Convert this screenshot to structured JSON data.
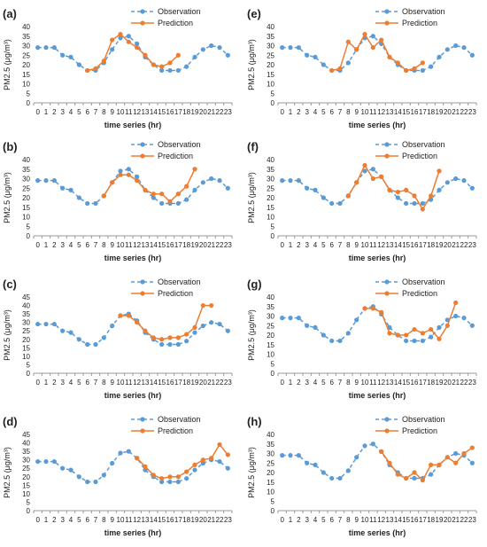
{
  "colors": {
    "observation": "#5B9BD5",
    "prediction": "#ED7D31",
    "axis": "#9a9a9a"
  },
  "chart_data": [
    {
      "panel": "(a)",
      "type": "line",
      "ylabel": "PM2.5 (μg/m³)",
      "xlabel": "time series (hr)",
      "ylim": [
        0,
        40
      ],
      "yticks": [
        0,
        5,
        10,
        15,
        20,
        25,
        30,
        35,
        40
      ],
      "grid": false,
      "legend": "top-right",
      "x": [
        0,
        1,
        2,
        3,
        4,
        5,
        6,
        7,
        8,
        9,
        10,
        11,
        12,
        13,
        14,
        15,
        16,
        17,
        18,
        19,
        20,
        21,
        22,
        23
      ],
      "series": [
        {
          "name": "Observation",
          "x": [
            0,
            1,
            2,
            3,
            4,
            5,
            6,
            7,
            8,
            9,
            10,
            11,
            12,
            13,
            14,
            15,
            16,
            17,
            18,
            19,
            20,
            21,
            22,
            23
          ],
          "values": [
            29,
            29,
            29,
            25,
            24,
            20,
            17,
            17,
            21,
            28,
            34,
            35,
            31,
            24,
            20,
            17,
            17,
            17,
            19,
            24,
            28,
            30,
            29,
            25
          ]
        },
        {
          "name": "Prediction",
          "x": [
            6,
            7,
            8,
            9,
            10,
            11,
            12,
            13,
            14,
            15,
            16,
            17
          ],
          "values": [
            17,
            18,
            22,
            33,
            36,
            32,
            29,
            25,
            20,
            19,
            21,
            25
          ]
        }
      ]
    },
    {
      "panel": "(b)",
      "type": "line",
      "ylabel": "PM2.5 (μg/m³)",
      "xlabel": "time series (hr)",
      "ylim": [
        0,
        40
      ],
      "yticks": [
        0,
        5,
        10,
        15,
        20,
        25,
        30,
        35,
        40
      ],
      "grid": false,
      "legend": "top-right",
      "x": [
        0,
        1,
        2,
        3,
        4,
        5,
        6,
        7,
        8,
        9,
        10,
        11,
        12,
        13,
        14,
        15,
        16,
        17,
        18,
        19,
        20,
        21,
        22,
        23
      ],
      "series": [
        {
          "name": "Observation",
          "x": [
            0,
            1,
            2,
            3,
            4,
            5,
            6,
            7,
            8,
            9,
            10,
            11,
            12,
            13,
            14,
            15,
            16,
            17,
            18,
            19,
            20,
            21,
            22,
            23
          ],
          "values": [
            29,
            29,
            29,
            25,
            24,
            20,
            17,
            17,
            21,
            28,
            34,
            35,
            31,
            24,
            20,
            17,
            17,
            17,
            19,
            24,
            28,
            30,
            29,
            25
          ]
        },
        {
          "name": "Prediction",
          "x": [
            8,
            9,
            10,
            11,
            12,
            13,
            14,
            15,
            16,
            17,
            18,
            19
          ],
          "values": [
            21,
            28,
            32,
            32,
            29,
            24,
            22,
            22,
            18,
            22,
            26,
            35
          ]
        }
      ]
    },
    {
      "panel": "(c)",
      "type": "line",
      "ylabel": "PM2.5 (μg/m³)",
      "xlabel": "time series (hr)",
      "ylim": [
        0,
        45
      ],
      "yticks": [
        0,
        5,
        10,
        15,
        20,
        25,
        30,
        35,
        40,
        45
      ],
      "grid": false,
      "legend": "top-right",
      "x": [
        0,
        1,
        2,
        3,
        4,
        5,
        6,
        7,
        8,
        9,
        10,
        11,
        12,
        13,
        14,
        15,
        16,
        17,
        18,
        19,
        20,
        21,
        22,
        23
      ],
      "series": [
        {
          "name": "Observation",
          "x": [
            0,
            1,
            2,
            3,
            4,
            5,
            6,
            7,
            8,
            9,
            10,
            11,
            12,
            13,
            14,
            15,
            16,
            17,
            18,
            19,
            20,
            21,
            22,
            23
          ],
          "values": [
            29,
            29,
            29,
            25,
            24,
            20,
            17,
            17,
            21,
            28,
            34,
            35,
            31,
            24,
            20,
            17,
            17,
            17,
            19,
            24,
            28,
            30,
            29,
            25
          ]
        },
        {
          "name": "Prediction",
          "x": [
            10,
            11,
            12,
            13,
            14,
            15,
            16,
            17,
            18,
            19,
            20,
            21
          ],
          "values": [
            34,
            34,
            30,
            25,
            21,
            20,
            21,
            21,
            23,
            27,
            40,
            40
          ]
        }
      ]
    },
    {
      "panel": "(d)",
      "type": "line",
      "ylabel": "PM2.5 (μg/m³)",
      "xlabel": "time series (hr)",
      "ylim": [
        0,
        45
      ],
      "yticks": [
        0,
        5,
        10,
        15,
        20,
        25,
        30,
        35,
        40,
        45
      ],
      "grid": false,
      "legend": "top-right",
      "x": [
        0,
        1,
        2,
        3,
        4,
        5,
        6,
        7,
        8,
        9,
        10,
        11,
        12,
        13,
        14,
        15,
        16,
        17,
        18,
        19,
        20,
        21,
        22,
        23
      ],
      "series": [
        {
          "name": "Observation",
          "x": [
            0,
            1,
            2,
            3,
            4,
            5,
            6,
            7,
            8,
            9,
            10,
            11,
            12,
            13,
            14,
            15,
            16,
            17,
            18,
            19,
            20,
            21,
            22,
            23
          ],
          "values": [
            29,
            29,
            29,
            25,
            24,
            20,
            17,
            17,
            21,
            28,
            34,
            35,
            31,
            24,
            20,
            17,
            17,
            17,
            19,
            24,
            28,
            30,
            29,
            25
          ]
        },
        {
          "name": "Prediction",
          "x": [
            12,
            13,
            14,
            15,
            16,
            17,
            18,
            19,
            20,
            21,
            22,
            23
          ],
          "values": [
            31,
            26,
            21,
            19,
            20,
            20,
            23,
            27,
            30,
            31,
            39,
            33
          ]
        }
      ]
    },
    {
      "panel": "(e)",
      "type": "line",
      "ylabel": "PM2.5 (μg/m³)",
      "xlabel": "time series (hr)",
      "ylim": [
        0,
        40
      ],
      "yticks": [
        0,
        5,
        10,
        15,
        20,
        25,
        30,
        35,
        40
      ],
      "grid": false,
      "legend": "top-right",
      "x": [
        0,
        1,
        2,
        3,
        4,
        5,
        6,
        7,
        8,
        9,
        10,
        11,
        12,
        13,
        14,
        15,
        16,
        17,
        18,
        19,
        20,
        21,
        22,
        23
      ],
      "series": [
        {
          "name": "Observation",
          "x": [
            0,
            1,
            2,
            3,
            4,
            5,
            6,
            7,
            8,
            9,
            10,
            11,
            12,
            13,
            14,
            15,
            16,
            17,
            18,
            19,
            20,
            21,
            22,
            23
          ],
          "values": [
            29,
            29,
            29,
            25,
            24,
            20,
            17,
            17,
            21,
            28,
            34,
            35,
            31,
            24,
            20,
            17,
            17,
            17,
            19,
            24,
            28,
            30,
            29,
            25
          ]
        },
        {
          "name": "Prediction",
          "x": [
            6,
            7,
            8,
            9,
            10,
            11,
            12,
            13,
            14,
            15,
            16,
            17
          ],
          "values": [
            17,
            18,
            32,
            28,
            36,
            29,
            33,
            24,
            21,
            17,
            18,
            21
          ]
        }
      ]
    },
    {
      "panel": "(f)",
      "type": "line",
      "ylabel": "PM2.5 (μg/m³)",
      "xlabel": "time series (hr)",
      "ylim": [
        0,
        40
      ],
      "yticks": [
        0,
        5,
        10,
        15,
        20,
        25,
        30,
        35,
        40
      ],
      "grid": false,
      "legend": "top-right",
      "x": [
        0,
        1,
        2,
        3,
        4,
        5,
        6,
        7,
        8,
        9,
        10,
        11,
        12,
        13,
        14,
        15,
        16,
        17,
        18,
        19,
        20,
        21,
        22,
        23
      ],
      "series": [
        {
          "name": "Observation",
          "x": [
            0,
            1,
            2,
            3,
            4,
            5,
            6,
            7,
            8,
            9,
            10,
            11,
            12,
            13,
            14,
            15,
            16,
            17,
            18,
            19,
            20,
            21,
            22,
            23
          ],
          "values": [
            29,
            29,
            29,
            25,
            24,
            20,
            17,
            17,
            21,
            28,
            34,
            35,
            31,
            24,
            20,
            17,
            17,
            17,
            19,
            24,
            28,
            30,
            29,
            25
          ]
        },
        {
          "name": "Prediction",
          "x": [
            8,
            9,
            10,
            11,
            12,
            13,
            14,
            15,
            16,
            17,
            18,
            19
          ],
          "values": [
            21,
            28,
            37,
            30,
            31,
            24,
            23,
            24,
            21,
            14,
            21,
            34
          ]
        }
      ]
    },
    {
      "panel": "(g)",
      "type": "line",
      "ylabel": "PM2.5 (μg/m³)",
      "xlabel": "time series (hr)",
      "ylim": [
        0,
        40
      ],
      "yticks": [
        0,
        5,
        10,
        15,
        20,
        25,
        30,
        35,
        40
      ],
      "grid": false,
      "legend": "top-right",
      "x": [
        0,
        1,
        2,
        3,
        4,
        5,
        6,
        7,
        8,
        9,
        10,
        11,
        12,
        13,
        14,
        15,
        16,
        17,
        18,
        19,
        20,
        21,
        22,
        23
      ],
      "series": [
        {
          "name": "Observation",
          "x": [
            0,
            1,
            2,
            3,
            4,
            5,
            6,
            7,
            8,
            9,
            10,
            11,
            12,
            13,
            14,
            15,
            16,
            17,
            18,
            19,
            20,
            21,
            22,
            23
          ],
          "values": [
            29,
            29,
            29,
            25,
            24,
            20,
            17,
            17,
            21,
            28,
            34,
            35,
            31,
            24,
            20,
            17,
            17,
            17,
            19,
            24,
            28,
            30,
            29,
            25
          ]
        },
        {
          "name": "Prediction",
          "x": [
            10,
            11,
            12,
            13,
            14,
            15,
            16,
            17,
            18,
            19,
            20,
            21
          ],
          "values": [
            34,
            34,
            32,
            21,
            20,
            20,
            23,
            21,
            23,
            18,
            25,
            37
          ]
        }
      ]
    },
    {
      "panel": "(h)",
      "type": "line",
      "ylabel": "PM2.5 (μg/m³)",
      "xlabel": "time series (hr)",
      "ylim": [
        0,
        40
      ],
      "yticks": [
        0,
        5,
        10,
        15,
        20,
        25,
        30,
        35,
        40
      ],
      "grid": false,
      "legend": "top-right",
      "x": [
        0,
        1,
        2,
        3,
        4,
        5,
        6,
        7,
        8,
        9,
        10,
        11,
        12,
        13,
        14,
        15,
        16,
        17,
        18,
        19,
        20,
        21,
        22,
        23
      ],
      "series": [
        {
          "name": "Observation",
          "x": [
            0,
            1,
            2,
            3,
            4,
            5,
            6,
            7,
            8,
            9,
            10,
            11,
            12,
            13,
            14,
            15,
            16,
            17,
            18,
            19,
            20,
            21,
            22,
            23
          ],
          "values": [
            29,
            29,
            29,
            25,
            24,
            20,
            17,
            17,
            21,
            28,
            34,
            35,
            31,
            24,
            20,
            17,
            17,
            17,
            19,
            24,
            28,
            30,
            29,
            25
          ]
        },
        {
          "name": "Prediction",
          "x": [
            12,
            13,
            14,
            15,
            16,
            17,
            18,
            19,
            20,
            21,
            22,
            23
          ],
          "values": [
            31,
            25,
            19,
            17,
            20,
            16,
            24,
            24,
            28,
            25,
            30,
            33
          ]
        }
      ]
    }
  ]
}
